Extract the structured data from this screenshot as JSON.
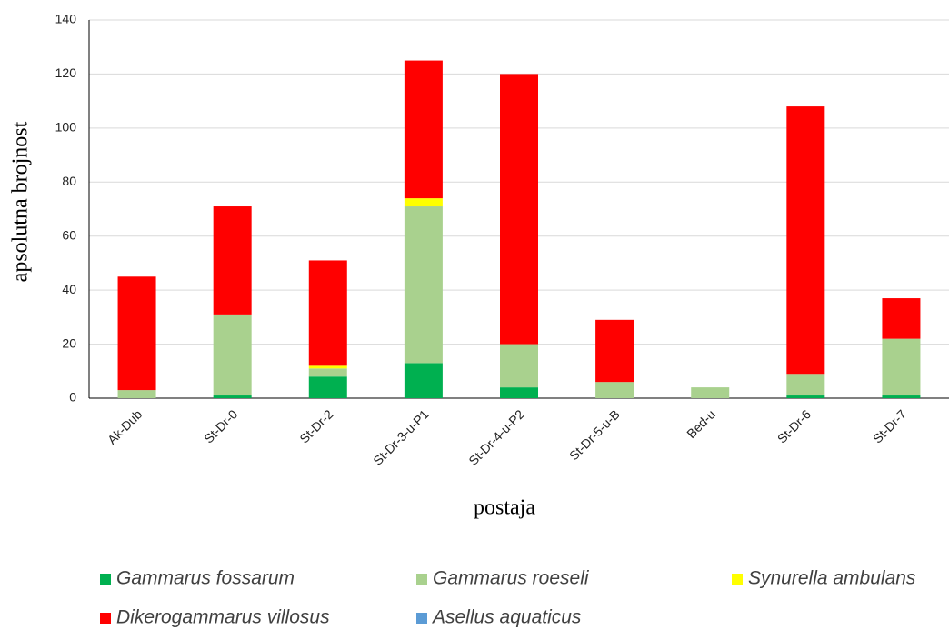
{
  "chart_data": {
    "type": "stacked_bar",
    "x_label": "postaja",
    "y_label": "apsolutna brojnost",
    "categories": [
      "Ak-Dub",
      "St-Dr-0",
      "St-Dr-2",
      "St-Dr-3-u-P1",
      "St-Dr-4-u-P2",
      "St-Dr-5-u-B",
      "Bed-u",
      "St-Dr-6",
      "St-Dr-7"
    ],
    "series": [
      {
        "name": "Gammarus fossarum",
        "color": "#00b050",
        "values": [
          0,
          1,
          8,
          13,
          4,
          0,
          0,
          1,
          1
        ]
      },
      {
        "name": "Gammarus roeseli",
        "color": "#a9d18e",
        "values": [
          3,
          30,
          3,
          58,
          16,
          6,
          4,
          8,
          21
        ]
      },
      {
        "name": "Synurella ambulans",
        "color": "#ffff00",
        "values": [
          0,
          0,
          1,
          3,
          0,
          0,
          0,
          0,
          0
        ]
      },
      {
        "name": "Dikerogammarus villosus",
        "color": "#ff0000",
        "values": [
          42,
          40,
          39,
          51,
          100,
          23,
          0,
          99,
          15
        ]
      },
      {
        "name": "Asellus aquaticus",
        "color": "#5b9bd5",
        "values": [
          0,
          0,
          0,
          0,
          0,
          0,
          0,
          0,
          0
        ]
      }
    ],
    "ylim": [
      0,
      140
    ],
    "yticks": [
      0,
      20,
      40,
      60,
      80,
      100,
      120,
      140
    ],
    "grid": true
  }
}
